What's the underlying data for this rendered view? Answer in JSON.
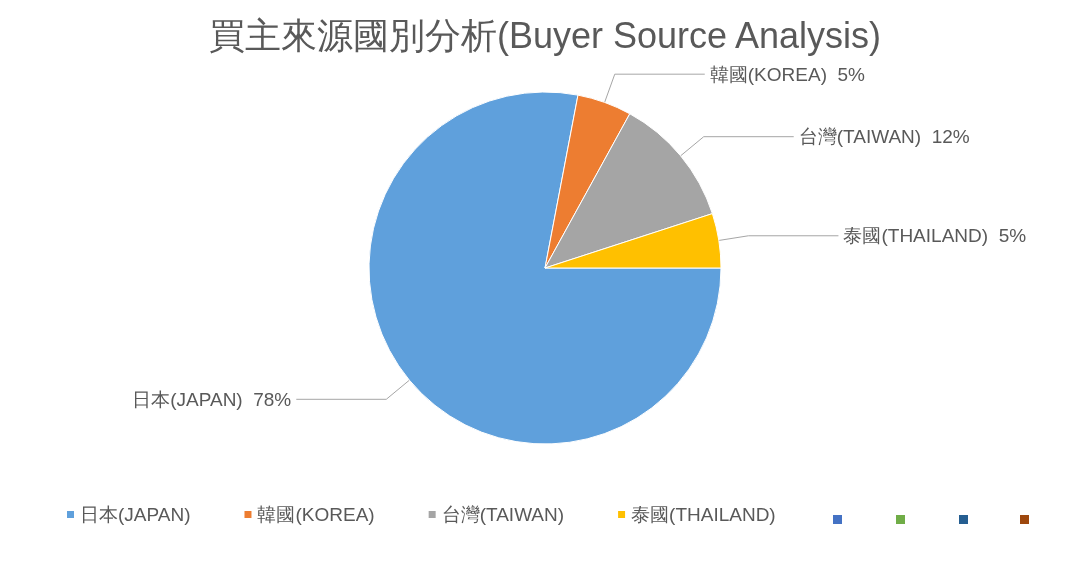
{
  "chart_data": {
    "type": "pie",
    "title": "買主來源國別分析(Buyer Source Analysis)",
    "categories": [
      "日本(JAPAN)",
      "韓國(KOREA)",
      "台灣(TAIWAN)",
      "泰國(THAILAND)"
    ],
    "values": [
      78,
      5,
      12,
      5
    ],
    "value_labels": [
      "78%",
      "5%",
      "12%",
      "5%"
    ],
    "colors": [
      "#5fa0dc",
      "#ed7d31",
      "#a5a5a5",
      "#ffc000"
    ],
    "legend": "bottom"
  }
}
